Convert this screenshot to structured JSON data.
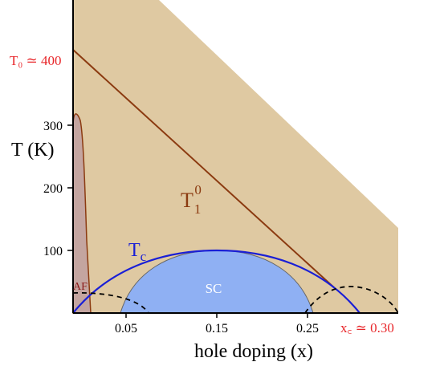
{
  "chart_data": {
    "type": "area",
    "title": "",
    "xlabel": "hole doping (x)",
    "ylabel": "T (K)",
    "xlim": [
      0,
      0.3
    ],
    "ylim": [
      0,
      480
    ],
    "x_ticks": [
      "0.05",
      "0.15",
      "0.25"
    ],
    "y_ticks": [
      "100",
      "200",
      "300"
    ],
    "grid": false,
    "colors": {
      "pseudogap": "#dfc9a2",
      "af": "#c4a5a0",
      "sc": "#8fb0f3",
      "t1_line": "#8b3a10",
      "tc_curve": "#1a1fd6",
      "red_text": "#e8262a",
      "axis": "#000000"
    },
    "annotations": {
      "t0_label": "T₀ ≃ 400",
      "t0_value": 420,
      "xc_label": "x꜀ ≃ 0.30",
      "xc_value": 0.3,
      "t1_label_main": "T",
      "t1_label_sub": "1",
      "t1_label_sup": "0",
      "tc_label_main": "T",
      "tc_label_sub": "c",
      "af_label": "AF",
      "sc_label": "SC"
    },
    "series": [
      {
        "name": "T1 0",
        "x": [
          0,
          0.27
        ],
        "y": [
          420,
          36
        ]
      },
      {
        "name": "Tc",
        "x": [
          0,
          0.03,
          0.06,
          0.09,
          0.12,
          0.15,
          0.18,
          0.21,
          0.24,
          0.27,
          0.3
        ],
        "y": [
          0,
          36,
          64,
          84,
          96,
          100,
          96,
          84,
          64,
          36,
          0
        ]
      },
      {
        "name": "SC",
        "x": [
          0.05,
          0.07,
          0.09,
          0.11,
          0.13,
          0.15,
          0.17,
          0.19,
          0.21,
          0.23,
          0.25
        ],
        "y": [
          0,
          60,
          80,
          92,
          98,
          100,
          98,
          92,
          80,
          60,
          0
        ]
      },
      {
        "name": "AF",
        "x": [
          0,
          0.003,
          0.007,
          0.01,
          0.012,
          0.014,
          0.016,
          0.018
        ],
        "y": [
          0,
          300,
          318,
          300,
          220,
          150,
          80,
          0
        ]
      },
      {
        "name": "dashed-left",
        "x": [
          0,
          0.02,
          0.04,
          0.055,
          0.07
        ],
        "y": [
          35,
          32,
          20,
          8,
          0
        ]
      },
      {
        "name": "dashed-right",
        "x": [
          0.22,
          0.24,
          0.26,
          0.28,
          0.3,
          0.32
        ],
        "y": [
          0,
          25,
          38,
          38,
          25,
          0
        ]
      }
    ]
  }
}
